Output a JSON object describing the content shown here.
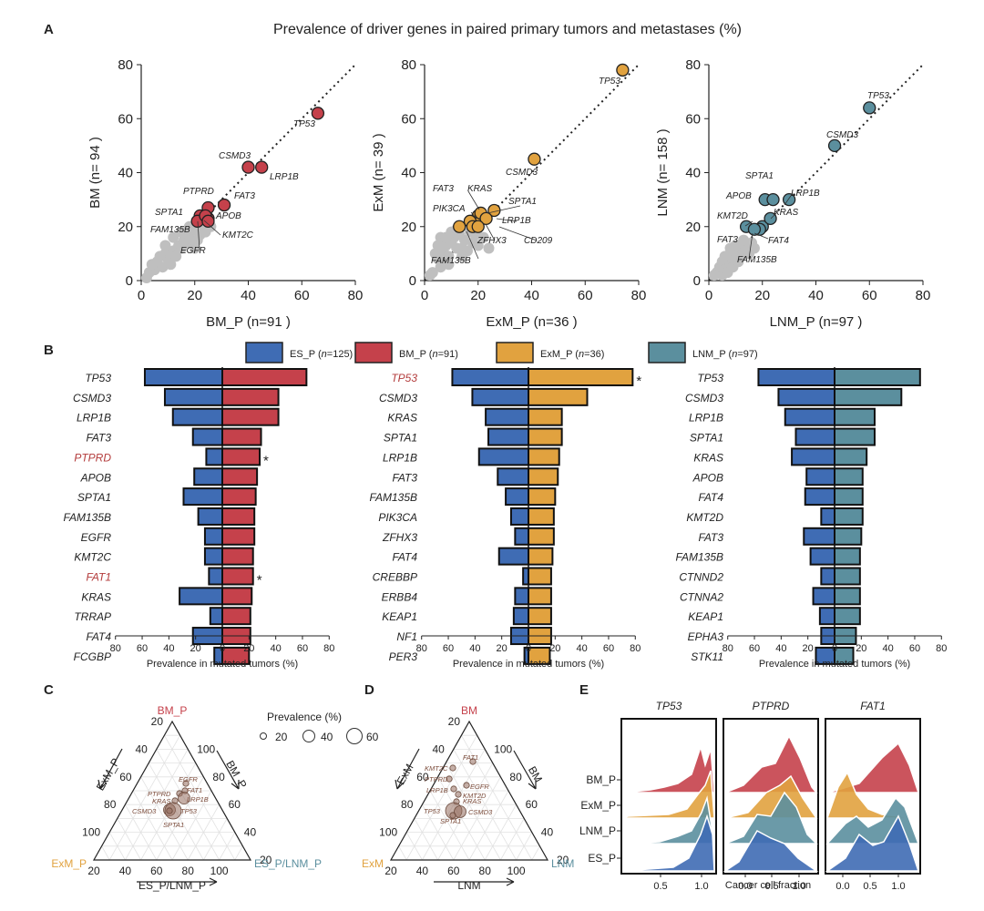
{
  "colors": {
    "ES": "#3f6cb4",
    "BM": "#c5414b",
    "ExM": "#e1a23f",
    "LNM": "#5b8f9e",
    "grey": "#bfbfbf",
    "highlight": "#b33b3b"
  },
  "panel_labels": {
    "A": "A",
    "B": "B",
    "C": "C",
    "D": "D",
    "E": "E"
  },
  "figure_title": "Prevalence of driver genes in paired primary tumors and metastases (%)",
  "chart_data": [
    {
      "id": "A1",
      "type": "scatter",
      "color": "BM",
      "xlabel": "BM_P (n=91 )",
      "ylabel": "BM (n= 94 )",
      "xlim": [
        0,
        80
      ],
      "ylim": [
        0,
        80
      ],
      "ticks": [
        0,
        20,
        40,
        60,
        80
      ],
      "highlighted": [
        {
          "gene": "TP53",
          "x": 66,
          "y": 62
        },
        {
          "gene": "CSMD3",
          "x": 40,
          "y": 42
        },
        {
          "gene": "LRP1B",
          "x": 45,
          "y": 42
        },
        {
          "gene": "FAT3",
          "x": 31,
          "y": 28
        },
        {
          "gene": "PTPRD",
          "x": 25,
          "y": 27
        },
        {
          "gene": "APOB",
          "x": 25,
          "y": 23
        },
        {
          "gene": "SPTA1",
          "x": 22,
          "y": 24
        },
        {
          "gene": "FAM135B",
          "x": 21,
          "y": 22
        },
        {
          "gene": "EGFR",
          "x": 24,
          "y": 24
        },
        {
          "gene": "KMT2C",
          "x": 25,
          "y": 22
        }
      ],
      "background": [
        [
          3,
          3
        ],
        [
          5,
          4
        ],
        [
          6,
          7
        ],
        [
          8,
          5
        ],
        [
          9,
          10
        ],
        [
          10,
          8
        ],
        [
          12,
          11
        ],
        [
          13,
          9
        ],
        [
          14,
          13
        ],
        [
          15,
          12
        ],
        [
          16,
          15
        ],
        [
          17,
          14
        ],
        [
          18,
          17
        ],
        [
          19,
          15
        ],
        [
          20,
          19
        ],
        [
          22,
          17
        ],
        [
          23,
          19
        ],
        [
          24,
          18
        ],
        [
          26,
          20
        ],
        [
          7,
          9
        ],
        [
          11,
          6
        ],
        [
          4,
          6
        ],
        [
          2,
          1
        ],
        [
          15,
          18
        ],
        [
          18,
          20
        ],
        [
          20,
          12
        ],
        [
          21,
          15
        ],
        [
          12,
          16
        ],
        [
          9,
          13
        ]
      ]
    },
    {
      "id": "A2",
      "type": "scatter",
      "color": "ExM",
      "xlabel": "ExM_P (n=36 )",
      "ylabel": "ExM (n= 39 )",
      "xlim": [
        0,
        80
      ],
      "ylim": [
        0,
        80
      ],
      "ticks": [
        0,
        20,
        40,
        60,
        80
      ],
      "highlighted": [
        {
          "gene": "TP53",
          "x": 74,
          "y": 78
        },
        {
          "gene": "CSMD3",
          "x": 41,
          "y": 45
        },
        {
          "gene": "FAT3",
          "x": 20,
          "y": 24
        },
        {
          "gene": "KRAS",
          "x": 21,
          "y": 25
        },
        {
          "gene": "SPTA1",
          "x": 26,
          "y": 26
        },
        {
          "gene": "PIK3CA",
          "x": 17,
          "y": 22
        },
        {
          "gene": "LRP1B",
          "x": 23,
          "y": 23
        },
        {
          "gene": "ZFHX3",
          "x": 18,
          "y": 20
        },
        {
          "gene": "CD209",
          "x": 20,
          "y": 20
        },
        {
          "gene": "FAM135B",
          "x": 13,
          "y": 20
        }
      ],
      "background": [
        [
          3,
          3
        ],
        [
          5,
          8
        ],
        [
          6,
          5
        ],
        [
          7,
          11
        ],
        [
          8,
          13
        ],
        [
          9,
          9
        ],
        [
          10,
          14
        ],
        [
          11,
          16
        ],
        [
          12,
          12
        ],
        [
          13,
          17
        ],
        [
          14,
          12
        ],
        [
          15,
          15
        ],
        [
          16,
          11
        ],
        [
          17,
          18
        ],
        [
          18,
          14
        ],
        [
          19,
          17
        ],
        [
          20,
          13
        ],
        [
          22,
          16
        ],
        [
          24,
          12
        ],
        [
          6,
          16
        ],
        [
          4,
          10
        ],
        [
          2,
          2
        ],
        [
          10,
          18
        ],
        [
          12,
          19
        ],
        [
          9,
          6
        ],
        [
          8,
          16
        ],
        [
          14,
          9
        ],
        [
          5,
          13
        ]
      ]
    },
    {
      "id": "A3",
      "type": "scatter",
      "color": "LNM",
      "xlabel": "LNM_P (n=97 )",
      "ylabel": "LNM (n= 158 )",
      "xlim": [
        0,
        80
      ],
      "ylim": [
        0,
        80
      ],
      "ticks": [
        0,
        20,
        40,
        60,
        80
      ],
      "highlighted": [
        {
          "gene": "TP53",
          "x": 60,
          "y": 64
        },
        {
          "gene": "CSMD3",
          "x": 47,
          "y": 50
        },
        {
          "gene": "SPTA1",
          "x": 21,
          "y": 30
        },
        {
          "gene": "APOB",
          "x": 24,
          "y": 30
        },
        {
          "gene": "LRP1B",
          "x": 30,
          "y": 30
        },
        {
          "gene": "KMT2D",
          "x": 20,
          "y": 20
        },
        {
          "gene": "KRAS",
          "x": 23,
          "y": 23
        },
        {
          "gene": "FAT3",
          "x": 14,
          "y": 20
        },
        {
          "gene": "FAT4",
          "x": 19,
          "y": 19
        },
        {
          "gene": "FAM135B",
          "x": 17,
          "y": 19
        }
      ],
      "background": [
        [
          3,
          3
        ],
        [
          4,
          5
        ],
        [
          5,
          7
        ],
        [
          6,
          4
        ],
        [
          7,
          8
        ],
        [
          8,
          6
        ],
        [
          9,
          10
        ],
        [
          10,
          8
        ],
        [
          11,
          12
        ],
        [
          12,
          9
        ],
        [
          13,
          11
        ],
        [
          14,
          13
        ],
        [
          15,
          10
        ],
        [
          16,
          14
        ],
        [
          17,
          12
        ],
        [
          2,
          2
        ],
        [
          6,
          9
        ],
        [
          8,
          12
        ],
        [
          9,
          5
        ],
        [
          11,
          7
        ],
        [
          5,
          2
        ],
        [
          13,
          15
        ],
        [
          10,
          13
        ],
        [
          7,
          3
        ]
      ]
    },
    {
      "id": "B1",
      "type": "bar",
      "title": "",
      "xlabel": "Prevalence in mutated tumors (%)",
      "xlim": [
        -80,
        80
      ],
      "ticks": [
        "80",
        "60",
        "40",
        "20",
        "0",
        "20",
        "40",
        "60",
        "80"
      ],
      "left_series": "ES_P",
      "right_series": "BM_P",
      "categories": [
        "TP53",
        "CSMD3",
        "LRP1B",
        "FAT3",
        "PTPRD",
        "APOB",
        "SPTA1",
        "FAM135B",
        "EGFR",
        "KMT2C",
        "FAT1",
        "KRAS",
        "TRRAP",
        "FAT4",
        "FCGBP"
      ],
      "highlight_genes": [
        "PTPRD",
        "FAT1"
      ],
      "left_values": [
        58,
        43,
        37,
        22,
        12,
        21,
        29,
        18,
        13,
        13,
        10,
        32,
        9,
        22,
        6
      ],
      "right_values": [
        63,
        42,
        42,
        29,
        28,
        26,
        25,
        24,
        24,
        23,
        23,
        22,
        21,
        21,
        20
      ],
      "stars": [
        "PTPRD",
        "FAT1"
      ]
    },
    {
      "id": "B2",
      "type": "bar",
      "title": "",
      "xlabel": "Prevalence in mutated tumors (%)",
      "xlim": [
        -80,
        80
      ],
      "ticks": [
        "80",
        "60",
        "40",
        "20",
        "0",
        "20",
        "40",
        "60",
        "80"
      ],
      "left_series": "ES_P",
      "right_series": "ExM_P",
      "categories": [
        "TP53",
        "CSMD3",
        "KRAS",
        "SPTA1",
        "LRP1B",
        "FAT3",
        "FAM135B",
        "PIK3CA",
        "ZFHX3",
        "FAT4",
        "CREBBP",
        "ERBB4",
        "KEAP1",
        "NF1",
        "PER3"
      ],
      "highlight_genes": [
        "TP53"
      ],
      "left_values": [
        57,
        42,
        32,
        30,
        37,
        23,
        17,
        13,
        10,
        22,
        4,
        10,
        11,
        13,
        3
      ],
      "right_values": [
        78,
        44,
        25,
        25,
        23,
        22,
        20,
        19,
        19,
        18,
        17,
        17,
        17,
        17,
        16
      ],
      "stars": [
        "TP53"
      ]
    },
    {
      "id": "B3",
      "type": "bar",
      "title": "",
      "xlabel": "Prevalence in mutated tumors (%)",
      "xlim": [
        -80,
        80
      ],
      "ticks": [
        "80",
        "60",
        "40",
        "20",
        "0",
        "20",
        "40",
        "60",
        "80"
      ],
      "left_series": "ES_P",
      "right_series": "LNM_P",
      "categories": [
        "TP53",
        "CSMD3",
        "LRP1B",
        "SPTA1",
        "KRAS",
        "APOB",
        "FAT4",
        "KMT2D",
        "FAT3",
        "FAM135B",
        "CTNND2",
        "CTNNA2",
        "KEAP1",
        "EPHA3",
        "STK11"
      ],
      "highlight_genes": [],
      "left_values": [
        57,
        42,
        37,
        29,
        32,
        21,
        22,
        10,
        23,
        18,
        10,
        16,
        11,
        10,
        14
      ],
      "right_values": [
        64,
        50,
        30,
        30,
        24,
        21,
        21,
        21,
        20,
        19,
        19,
        19,
        19,
        16,
        14
      ],
      "stars": []
    },
    {
      "id": "C",
      "type": "scatter",
      "subtype": "ternary",
      "axes": {
        "top": "BM_P",
        "left": "ExM_P",
        "right": "ES_P/LNM_P",
        "left_side": "ExM_P",
        "right_side": "BM_P",
        "bottom": "ES_P/LNM_P"
      },
      "ticks": [
        "20",
        "40",
        "60",
        "80",
        "100"
      ],
      "points": [
        {
          "gene": "EGFR",
          "size": 20
        },
        {
          "gene": "FAT1",
          "size": 20
        },
        {
          "gene": "PTPRD",
          "size": 20
        },
        {
          "gene": "LRP1B",
          "size": 40
        },
        {
          "gene": "KRAS",
          "size": 20
        },
        {
          "gene": "CSMD3",
          "size": 40
        },
        {
          "gene": "TP53",
          "size": 60
        },
        {
          "gene": "SPTA1",
          "size": 20
        }
      ],
      "legend_title": "Prevalence (%)",
      "legend_values": [
        "20",
        "40",
        "60"
      ]
    },
    {
      "id": "D",
      "type": "scatter",
      "subtype": "ternary",
      "axes": {
        "top": "BM",
        "left": "ExM",
        "right": "LNM",
        "left_side": "ExM",
        "right_side": "BM",
        "bottom": "LNM"
      },
      "ticks": [
        "20",
        "40",
        "60",
        "80",
        "100"
      ],
      "points": [
        {
          "gene": "FAT1",
          "size": 20
        },
        {
          "gene": "KMT2C",
          "size": 20
        },
        {
          "gene": "PTPRD",
          "size": 20
        },
        {
          "gene": "EGFR",
          "size": 20
        },
        {
          "gene": "LRP1B",
          "size": 20
        },
        {
          "gene": "KMT2D",
          "size": 20
        },
        {
          "gene": "KRAS",
          "size": 20
        },
        {
          "gene": "TP53",
          "size": 60
        },
        {
          "gene": "CSMD3",
          "size": 40
        },
        {
          "gene": "SPTA1",
          "size": 20
        }
      ]
    },
    {
      "id": "E",
      "type": "area",
      "subtype": "ridgeline",
      "xlabel": "Cancer cell fraction",
      "panels": [
        "TP53",
        "PTPRD",
        "FAT1"
      ],
      "rows": [
        "BM_P",
        "ExM_P",
        "LNM_P",
        "ES_P"
      ],
      "xticks_panel1": [
        "0.5",
        "1.0"
      ],
      "xticks_panel2": [
        "0.0",
        "0.5",
        "1.0"
      ],
      "xticks_panel3": [
        "0.0",
        "0.5",
        "1.0"
      ]
    }
  ],
  "legend_B": [
    {
      "label": "ES_P (n=125)",
      "color": "ES",
      "prefix": "ES_P (",
      "n": "n",
      "suffix": "=125)"
    },
    {
      "label": "BM_P (n=91)",
      "color": "BM",
      "prefix": "BM_P (",
      "n": "n",
      "suffix": "=91)"
    },
    {
      "label": "ExM_P (n=36)",
      "color": "ExM",
      "prefix": "ExM_P (",
      "n": "n",
      "suffix": "=36)"
    },
    {
      "label": "LNM_P (n=97)",
      "color": "LNM",
      "prefix": "LNM_P (",
      "n": "n",
      "suffix": "=97)"
    }
  ]
}
